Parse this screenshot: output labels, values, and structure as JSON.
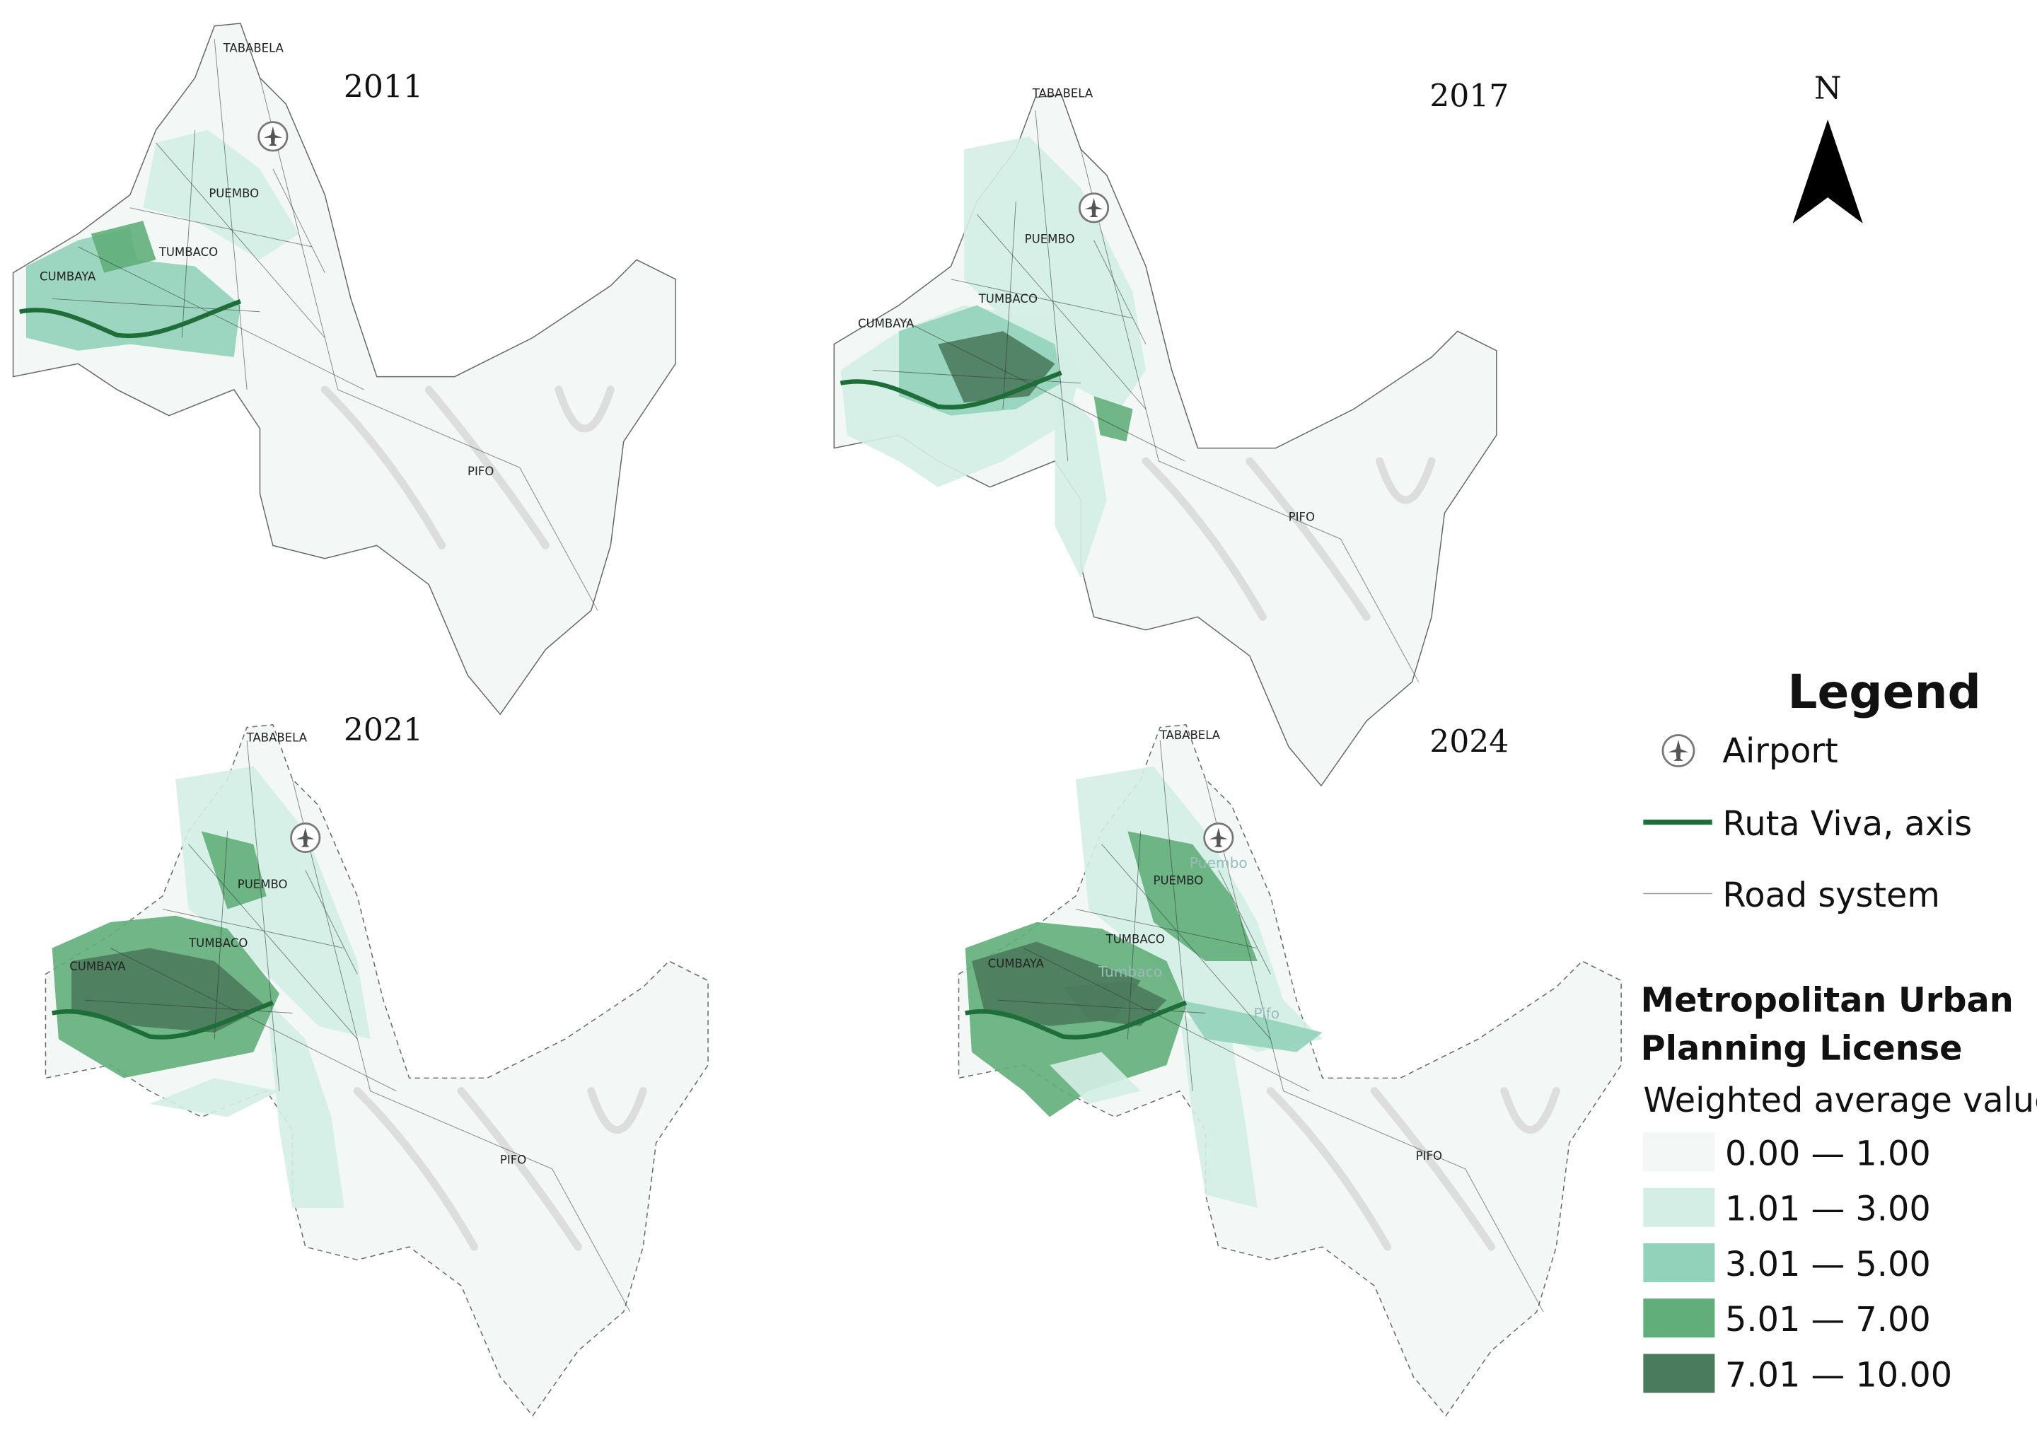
{
  "maps": [
    {
      "year": "2011",
      "places": [
        "TABABELA",
        "PUEMBO",
        "TUMBACO",
        "CUMBAYA",
        "PIFO"
      ]
    },
    {
      "year": "2017",
      "places": [
        "TABABELA",
        "PUEMBO",
        "TUMBACO",
        "CUMBAYA",
        "PIFO"
      ]
    },
    {
      "year": "2021",
      "places": [
        "TABABELA",
        "PUEMBO",
        "TUMBACO",
        "CUMBAYA",
        "PIFO"
      ]
    },
    {
      "year": "2024",
      "places": [
        "TABABELA",
        "PUEMBO",
        "TUMBACO",
        "CUMBAYA",
        "PIFO",
        "Puembo",
        "Tumbaco",
        "Pifo"
      ]
    }
  ],
  "north": "N",
  "legend": {
    "title": "Legend",
    "items": [
      "Airport",
      "Ruta Viva, axis",
      "Road system"
    ],
    "route_color": "#1f6e3a",
    "section_title": [
      "Metropolitan Urban",
      "Planning License"
    ],
    "subtitle": "Weighted average value",
    "classes": [
      {
        "label": "0.00 — 1.00",
        "color": "#f3f8f6"
      },
      {
        "label": "1.01 — 3.00",
        "color": "#d4eee6"
      },
      {
        "label": "3.01 — 5.00",
        "color": "#93d2ba"
      },
      {
        "label": "5.01 — 7.00",
        "color": "#62ae7a"
      },
      {
        "label": "7.01 — 10.00",
        "color": "#4b7b5d"
      }
    ]
  }
}
